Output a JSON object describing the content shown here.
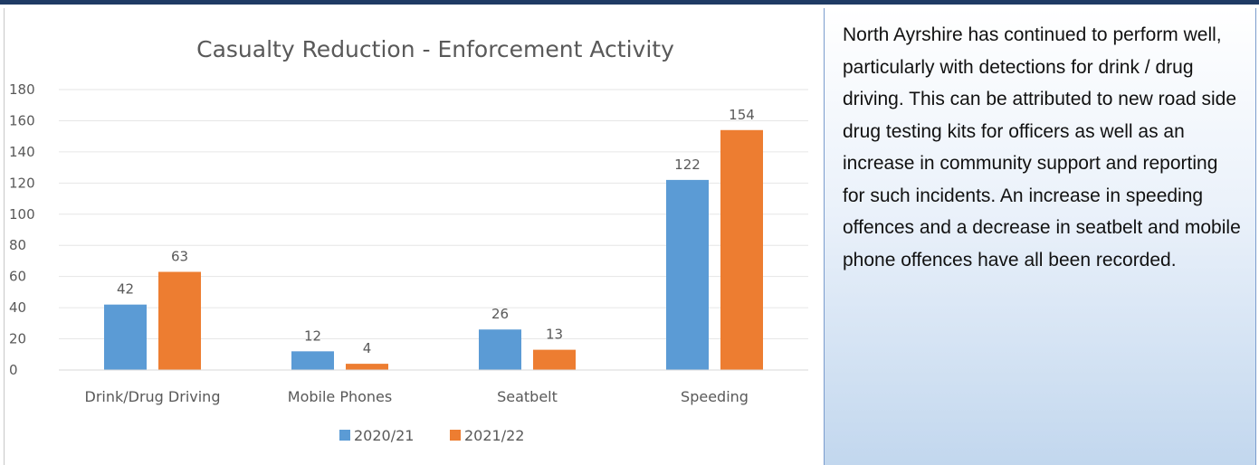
{
  "chart_data": {
    "type": "bar",
    "title": "Casualty Reduction - Enforcement Activity",
    "categories": [
      "Drink/Drug Driving",
      "Mobile Phones",
      "Seatbelt",
      "Speeding"
    ],
    "series": [
      {
        "name": "2020/21",
        "values": [
          42,
          12,
          26,
          122
        ],
        "color": "#5b9bd5"
      },
      {
        "name": "2021/22",
        "values": [
          63,
          4,
          13,
          154
        ],
        "color": "#ed7d31"
      }
    ],
    "ylim": [
      0,
      180
    ],
    "yticks": [
      "0",
      "20",
      "40",
      "60",
      "80",
      "100",
      "120",
      "140",
      "160",
      "180"
    ],
    "grid": true,
    "legend": "bottom"
  },
  "panel": {
    "text": "North Ayrshire has continued to perform well, particularly with detections for drink / drug driving. This can be attributed to new road side drug testing kits for officers as well as an increase in community support and reporting for such incidents. An increase in speeding offences and a decrease in seatbelt and mobile phone offences have all been recorded."
  }
}
